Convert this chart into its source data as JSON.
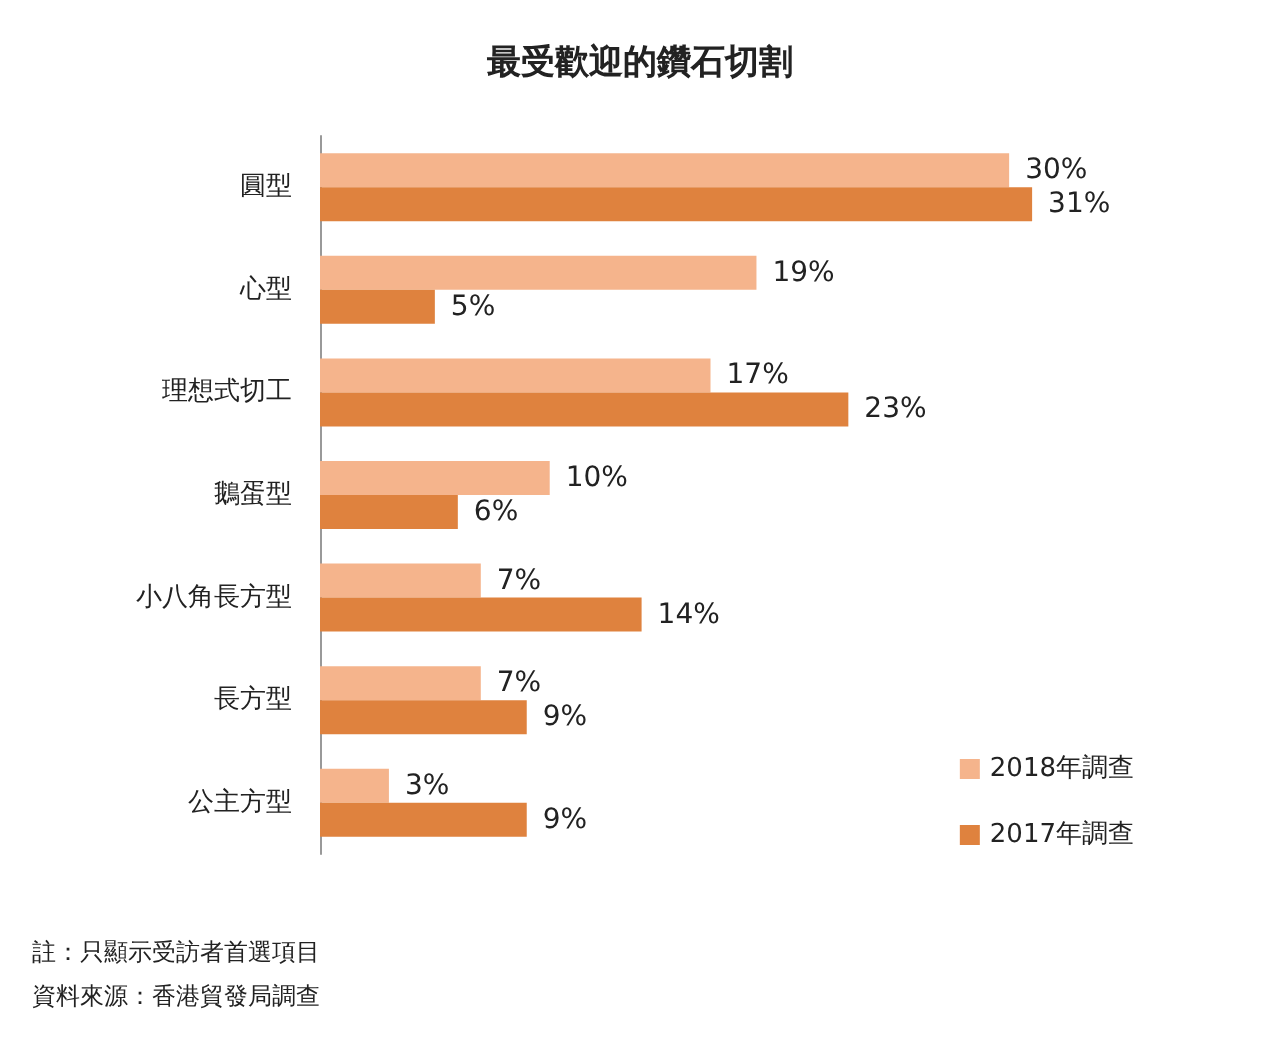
{
  "chart_data": {
    "type": "bar",
    "orientation": "horizontal",
    "title": "最受歡迎的鑽石切割",
    "categories": [
      "圓型",
      "心型",
      "理想式切工",
      "鵝蛋型",
      "小八角長方型",
      "長方型",
      "公主方型"
    ],
    "series": [
      {
        "name": "2018年調查",
        "color": "#f5b48c",
        "values": [
          30,
          19,
          17,
          10,
          7,
          7,
          3
        ],
        "value_labels": [
          "30%",
          "19%",
          "17%",
          "10%",
          "7%",
          "7%",
          "3%"
        ]
      },
      {
        "name": "2017年調查",
        "color": "#df823e",
        "values": [
          31,
          5,
          23,
          6,
          14,
          9,
          9
        ],
        "value_labels": [
          "31%",
          "5%",
          "23%",
          "6%",
          "14%",
          "9%",
          "9%"
        ]
      }
    ],
    "tick_labels": "y",
    "legend": "bottom right",
    "annotations": [
      "註：只顯示受訪者首選項目",
      "資料來源：香港貿發局調查"
    ]
  }
}
